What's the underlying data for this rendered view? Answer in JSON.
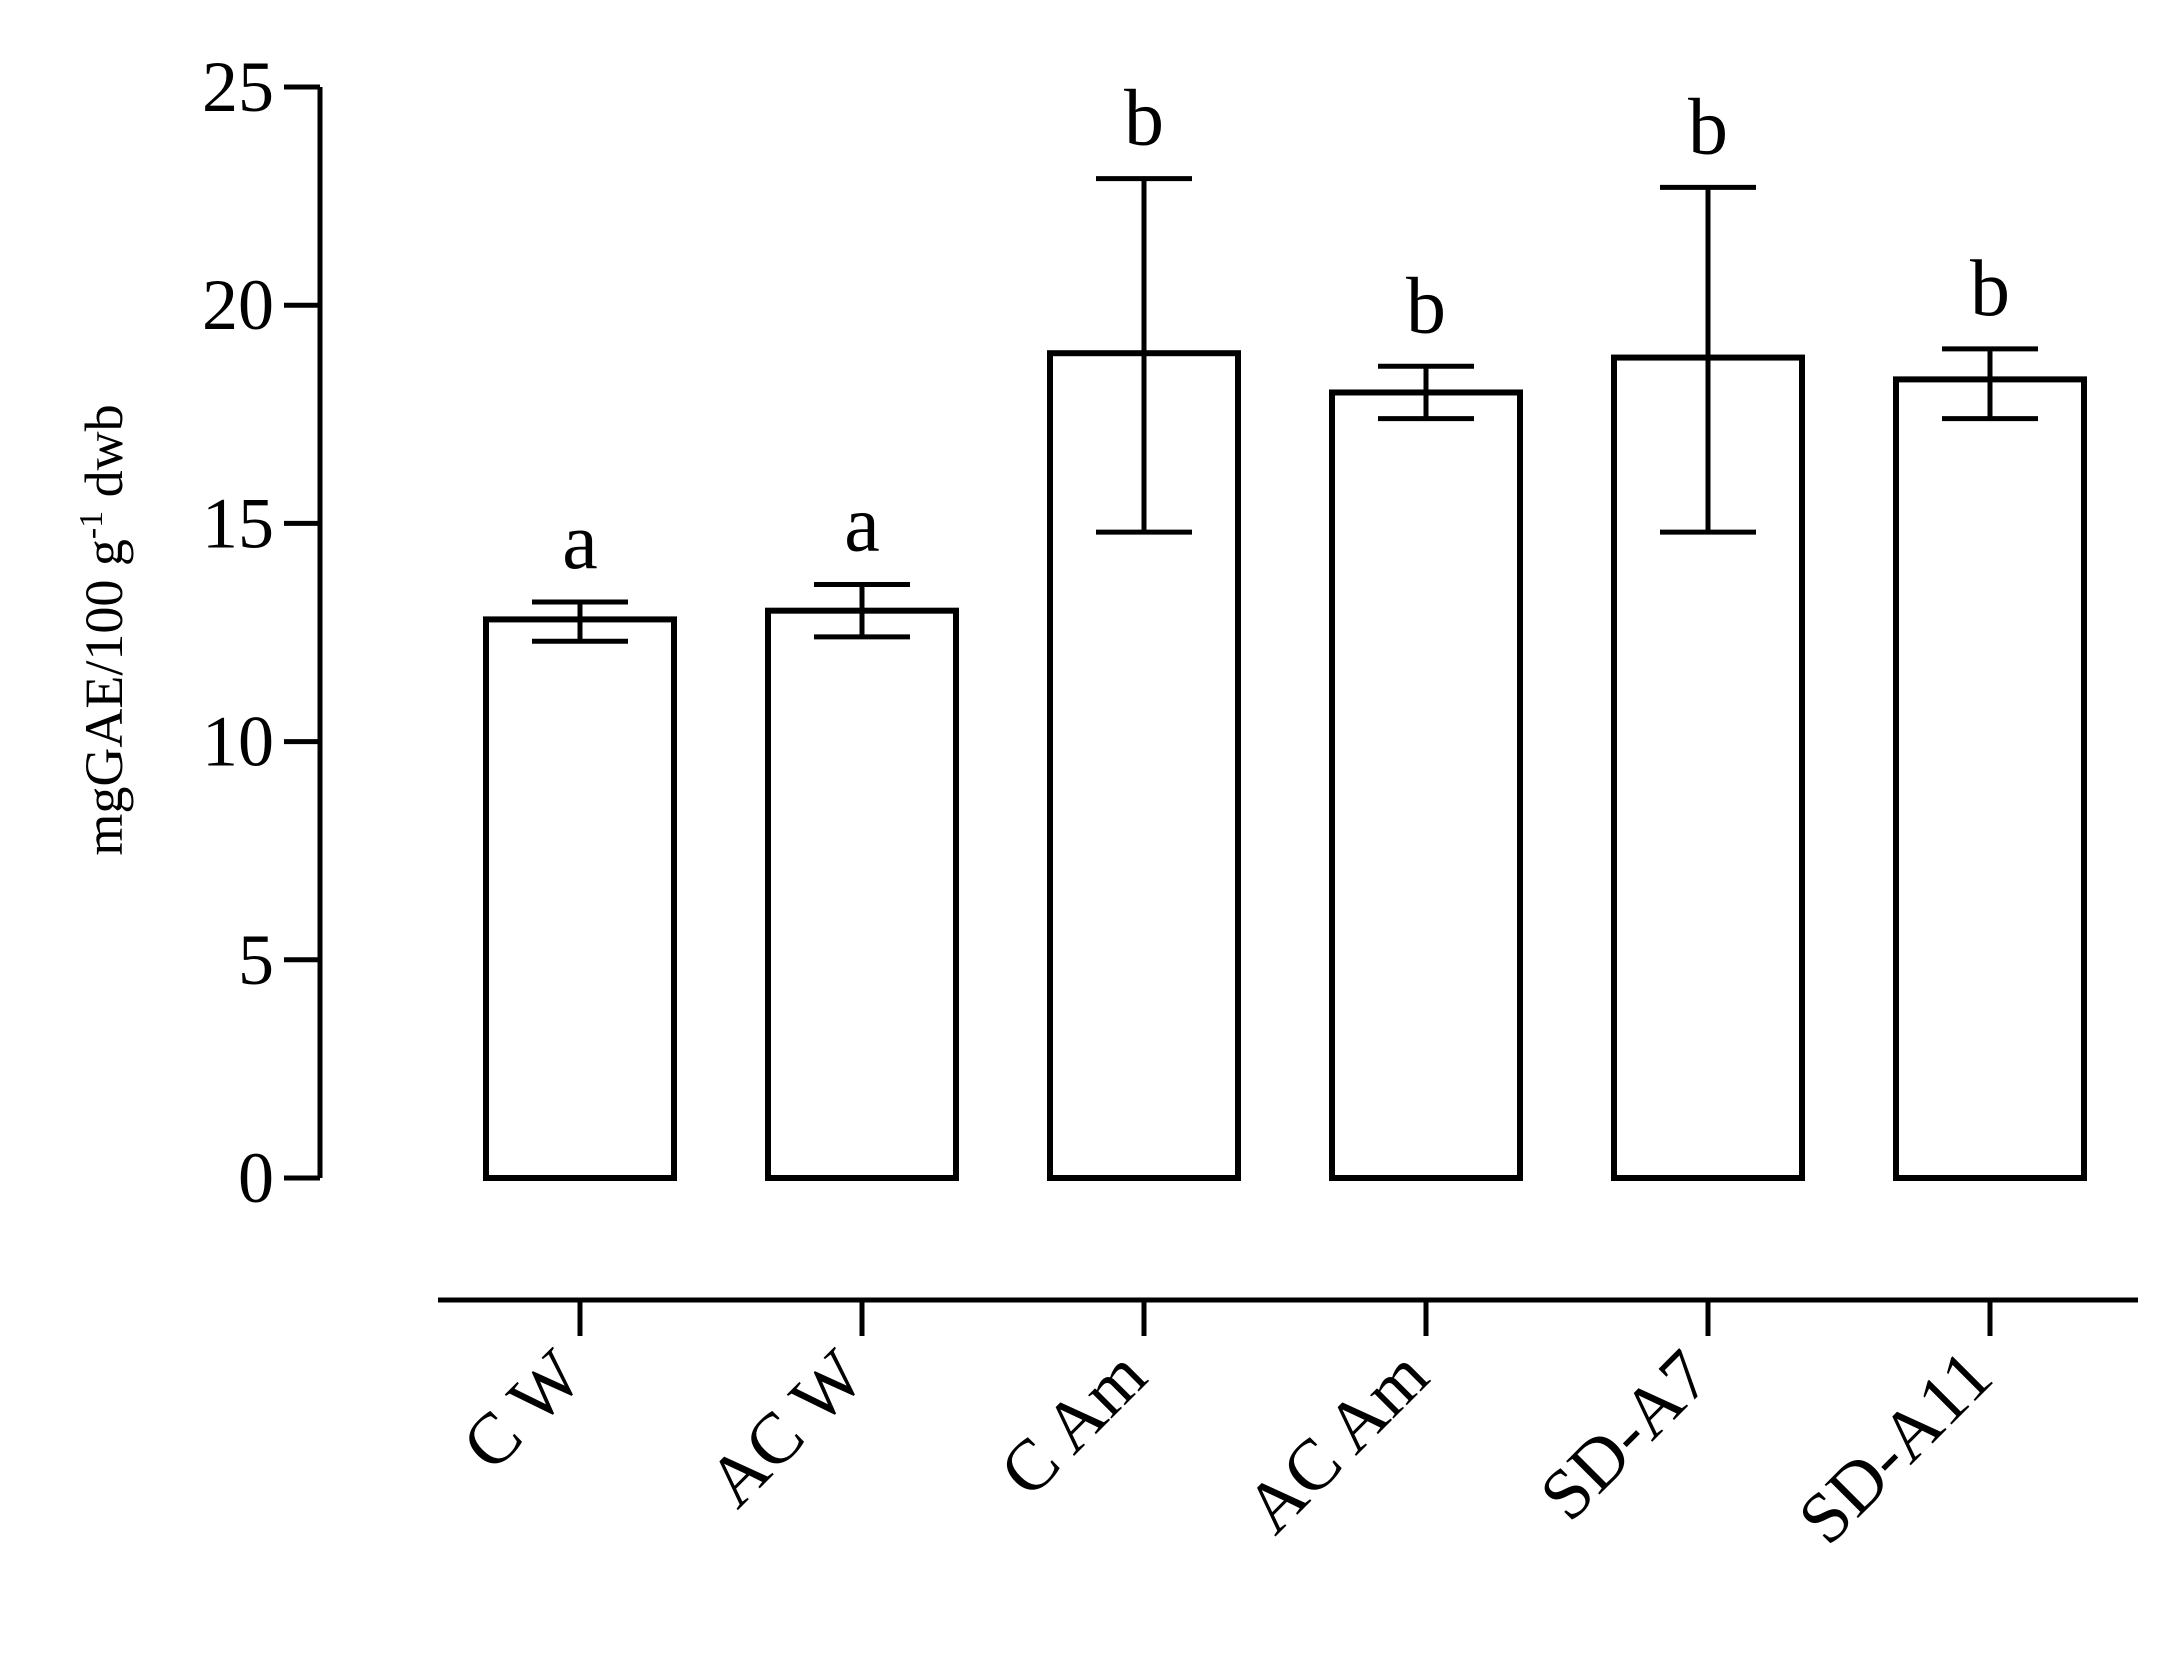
{
  "chart_data": {
    "type": "bar",
    "title": "",
    "xlabel": "",
    "ylabel": {
      "prefix": "mgGAE/100 g",
      "superscript": "-1",
      "suffix": " dwb"
    },
    "ylim": [
      0,
      25
    ],
    "yticks": [
      "0",
      "5",
      "10",
      "15",
      "20",
      "25"
    ],
    "categories": [
      "C W",
      "AC W",
      "C Am",
      "AC Am",
      "SD-A7",
      "SD-A11"
    ],
    "series": [
      {
        "values": [
          12.8,
          13.0,
          18.9,
          18.0,
          18.8,
          18.3
        ],
        "error_low": [
          12.3,
          12.4,
          14.8,
          17.4,
          14.8,
          17.4
        ],
        "error_high": [
          13.2,
          13.6,
          22.9,
          18.6,
          22.7,
          19.0
        ],
        "significance": [
          "a",
          "a",
          "b",
          "b",
          "b",
          "b"
        ]
      }
    ],
    "grid": false,
    "legend": "none"
  }
}
